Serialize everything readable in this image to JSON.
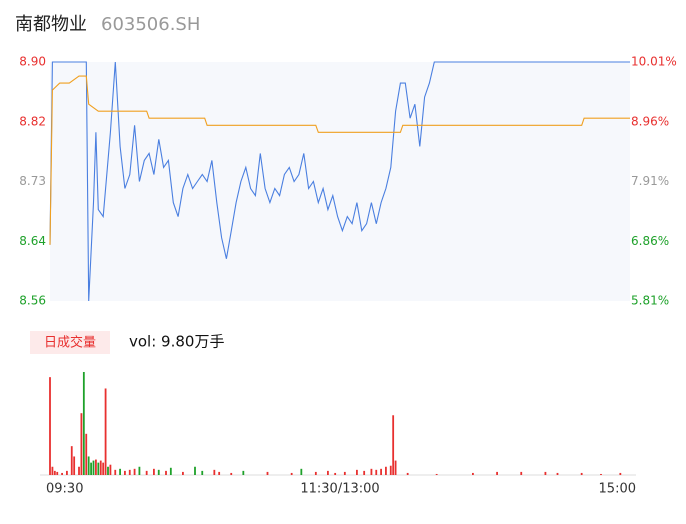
{
  "chart_data": [
    {
      "type": "line",
      "title": "南都物业",
      "subtitle": "603506.SH",
      "xlim": [
        0,
        240
      ],
      "ylim": [
        8.56,
        8.9
      ],
      "yticks": [
        {
          "value": 8.9,
          "label": "8.90"
        },
        {
          "value": 8.815,
          "label": "8.82"
        },
        8.73,
        {
          "value": 8.645,
          "label": "8.64"
        },
        8.56
      ],
      "y2lim": [
        5.81,
        10.01
      ],
      "y2ticks": [
        {
          "value": 10.01,
          "label": "10.01%"
        },
        {
          "value": 8.96,
          "label": "8.96%"
        },
        {
          "value": 7.91,
          "label": "7.91%"
        },
        {
          "value": 6.86,
          "label": "6.86%"
        },
        {
          "value": 5.81,
          "label": "5.81%"
        }
      ],
      "background": "#f6f8fc",
      "series": [
        {
          "color": "#4a7fe0",
          "x": [
            0,
            1,
            5,
            10,
            15,
            16,
            18,
            19,
            20,
            22,
            25,
            27,
            29,
            31,
            33,
            35,
            37,
            39,
            41,
            43,
            45,
            47,
            49,
            51,
            53,
            55,
            57,
            59,
            61,
            63,
            65,
            67,
            69,
            71,
            73,
            75,
            77,
            79,
            81,
            83,
            85,
            87,
            89,
            91,
            93,
            95,
            97,
            99,
            101,
            103,
            105,
            107,
            109,
            111,
            113,
            115,
            117,
            119,
            121,
            123,
            125,
            127,
            129,
            131,
            133,
            135,
            137,
            139,
            141,
            143,
            145,
            147,
            149,
            151,
            153,
            155,
            157,
            159,
            170,
            200,
            240
          ],
          "values": [
            8.64,
            8.9,
            8.9,
            8.9,
            8.9,
            8.56,
            8.7,
            8.8,
            8.69,
            8.68,
            8.8,
            8.9,
            8.78,
            8.72,
            8.74,
            8.81,
            8.73,
            8.76,
            8.77,
            8.74,
            8.79,
            8.75,
            8.76,
            8.7,
            8.68,
            8.72,
            8.74,
            8.72,
            8.73,
            8.74,
            8.73,
            8.76,
            8.7,
            8.65,
            8.62,
            8.66,
            8.7,
            8.73,
            8.75,
            8.72,
            8.71,
            8.77,
            8.72,
            8.7,
            8.72,
            8.71,
            8.74,
            8.75,
            8.73,
            8.74,
            8.77,
            8.72,
            8.73,
            8.7,
            8.72,
            8.69,
            8.71,
            8.68,
            8.66,
            8.68,
            8.67,
            8.7,
            8.66,
            8.67,
            8.7,
            8.67,
            8.7,
            8.72,
            8.75,
            8.83,
            8.87,
            8.87,
            8.82,
            8.84,
            8.78,
            8.85,
            8.87,
            8.9,
            8.9,
            8.9,
            8.9
          ]
        },
        {
          "color": "#f0a020",
          "x": [
            0,
            1,
            4,
            8,
            12,
            15,
            16,
            20,
            40,
            41,
            64,
            65,
            110,
            111,
            140,
            145,
            146,
            220,
            221,
            240
          ],
          "values": [
            8.64,
            8.86,
            8.87,
            8.87,
            8.88,
            8.88,
            8.84,
            8.83,
            8.83,
            8.82,
            8.82,
            8.81,
            8.81,
            8.8,
            8.8,
            8.8,
            8.81,
            8.81,
            8.82,
            8.82
          ]
        }
      ]
    },
    {
      "type": "bar",
      "label": "日成交量",
      "text": "vol: 9.80万手",
      "xlim": [
        0,
        240
      ],
      "ylim": [
        0,
        100
      ],
      "xticks": [
        {
          "value": 0,
          "label": "09:30"
        },
        {
          "value": 120,
          "label": "11:30/13:00"
        },
        {
          "value": 240,
          "label": "15:00"
        }
      ],
      "x": [
        0,
        1,
        2,
        3,
        5,
        7,
        9,
        10,
        12,
        13,
        14,
        15,
        16,
        17,
        18,
        19,
        20,
        21,
        22,
        23,
        24,
        25,
        27,
        29,
        31,
        33,
        35,
        37,
        40,
        43,
        45,
        48,
        50,
        55,
        60,
        63,
        68,
        70,
        75,
        80,
        90,
        100,
        104,
        110,
        115,
        118,
        122,
        127,
        130,
        133,
        135,
        137,
        139,
        141,
        142,
        143,
        148,
        160,
        175,
        185,
        195,
        205,
        210,
        220,
        228,
        236
      ],
      "values": [
        95,
        8,
        4,
        3,
        2,
        4,
        28,
        18,
        8,
        60,
        100,
        40,
        18,
        12,
        14,
        15,
        12,
        14,
        12,
        84,
        8,
        10,
        5,
        6,
        4,
        5,
        6,
        8,
        4,
        6,
        5,
        4,
        7,
        3,
        8,
        4,
        5,
        3,
        2,
        4,
        3,
        2,
        6,
        3,
        4,
        2,
        3,
        5,
        4,
        6,
        5,
        6,
        8,
        9,
        58,
        14,
        2,
        1,
        2,
        3,
        3,
        3,
        2,
        2,
        1,
        2
      ],
      "colors": [
        "#e8302f",
        "#e8302f",
        "#e8302f",
        "#e8302f",
        "#e8302f",
        "#e8302f",
        "#e8302f",
        "#e8302f",
        "#e8302f",
        "#e8302f",
        "#1ea12a",
        "#e8302f",
        "#1ea12a",
        "#1ea12a",
        "#1ea12a",
        "#e8302f",
        "#1ea12a",
        "#e8302f",
        "#e8302f",
        "#e8302f",
        "#1ea12a",
        "#e8302f",
        "#e8302f",
        "#1ea12a",
        "#e8302f",
        "#e8302f",
        "#e8302f",
        "#1ea12a",
        "#e8302f",
        "#e8302f",
        "#1ea12a",
        "#e8302f",
        "#1ea12a",
        "#e8302f",
        "#1ea12a",
        "#1ea12a",
        "#e8302f",
        "#e8302f",
        "#e8302f",
        "#1ea12a",
        "#e8302f",
        "#e8302f",
        "#1ea12a",
        "#e8302f",
        "#e8302f",
        "#e8302f",
        "#e8302f",
        "#e8302f",
        "#e8302f",
        "#e8302f",
        "#e8302f",
        "#e8302f",
        "#e8302f",
        "#e8302f",
        "#e8302f",
        "#e8302f",
        "#e8302f",
        "#e8302f",
        "#e8302f",
        "#e8302f",
        "#e8302f",
        "#e8302f",
        "#e8302f",
        "#e8302f",
        "#e8302f",
        "#e8302f"
      ]
    }
  ]
}
